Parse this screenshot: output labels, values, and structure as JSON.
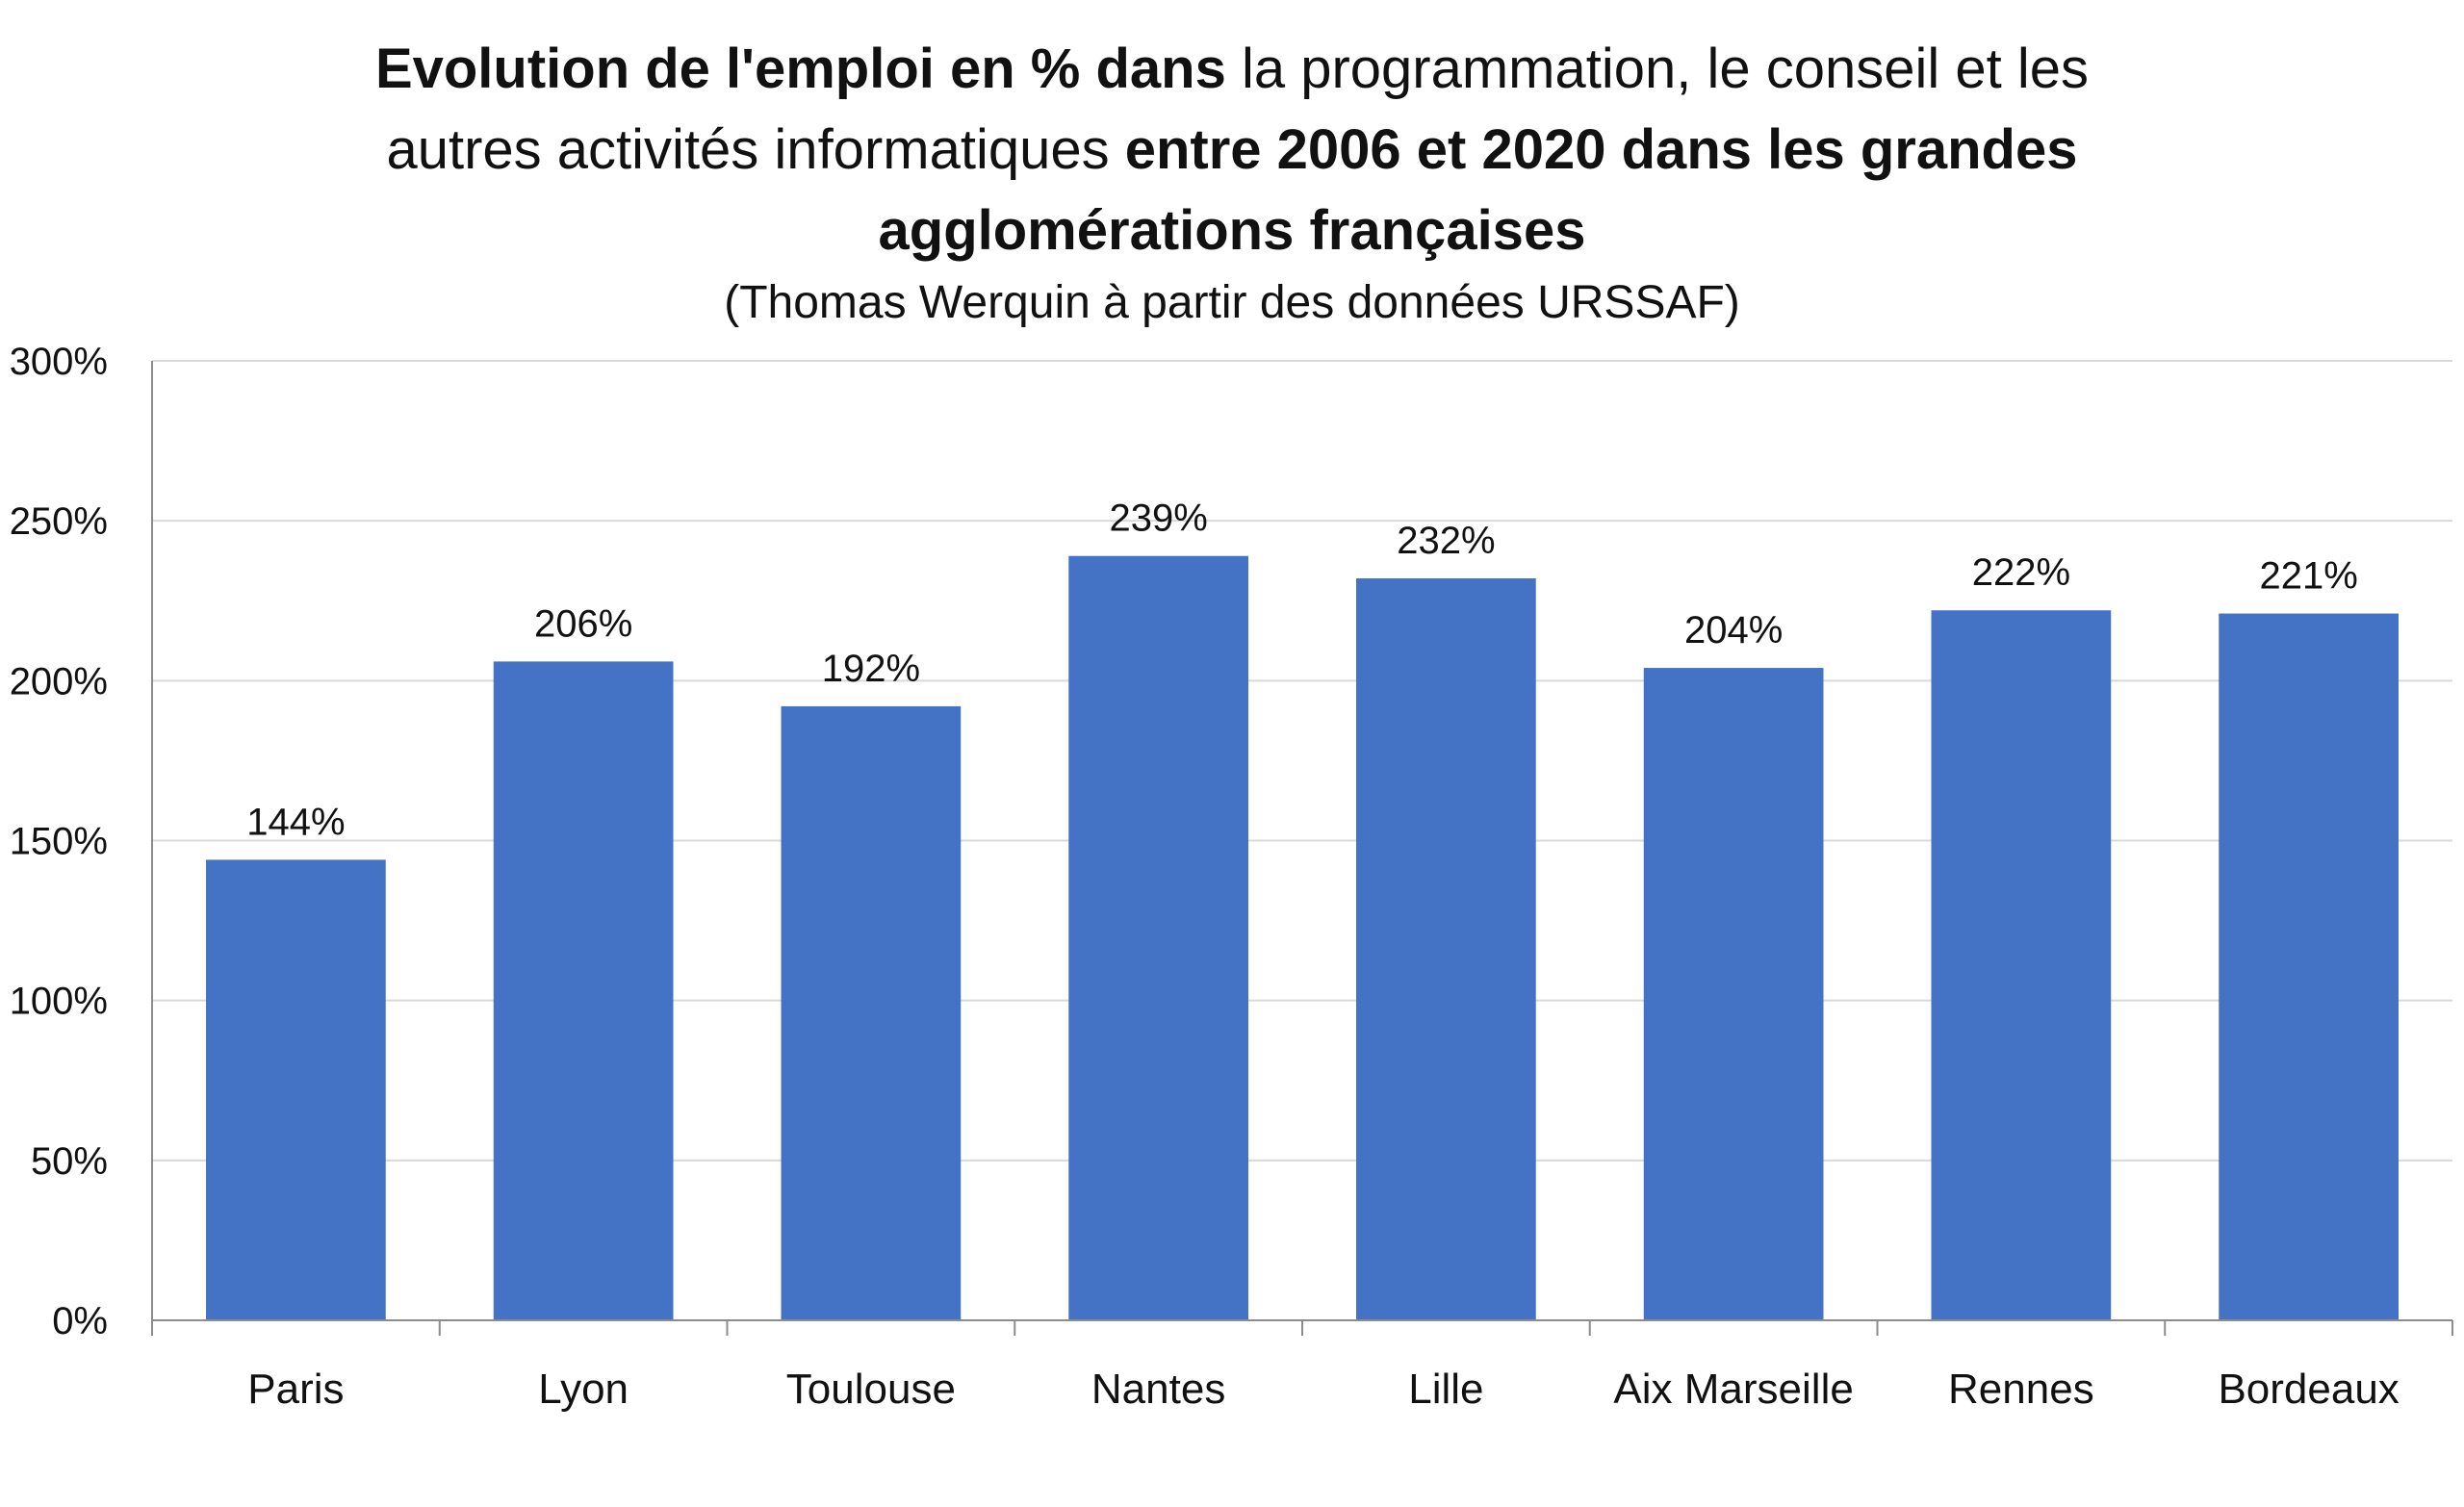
{
  "chart_data": {
    "type": "bar",
    "title_parts": [
      {
        "text": "Evolution de l'emploi en % dans",
        "bold": true
      },
      {
        "text": " la programmation, le conseil et les autres activités informatiques ",
        "bold": false
      },
      {
        "text": "entre 2006 et 2020 dans les grandes agglomérations françaises",
        "bold": true
      }
    ],
    "subtitle": "(Thomas Werquin à partir des données URSSAF)",
    "categories": [
      "Paris",
      "Lyon",
      "Toulouse",
      "Nantes",
      "Lille",
      "Aix Marseille",
      "Rennes",
      "Bordeaux"
    ],
    "values": [
      144,
      206,
      192,
      239,
      232,
      204,
      222,
      221
    ],
    "data_labels": [
      "144%",
      "206%",
      "192%",
      "239%",
      "232%",
      "204%",
      "222%",
      "221%"
    ],
    "ylim": [
      0,
      300
    ],
    "y_ticks": [
      0,
      50,
      100,
      150,
      200,
      250,
      300
    ],
    "y_tick_labels": [
      "0%",
      "50%",
      "100%",
      "150%",
      "200%",
      "250%",
      "300%"
    ],
    "xlabel": "",
    "ylabel": "",
    "grid": true,
    "legend": "none",
    "bar_color": "#4472C4",
    "grid_color": "#D9D9D9",
    "axis_color": "#8C8C8C"
  }
}
